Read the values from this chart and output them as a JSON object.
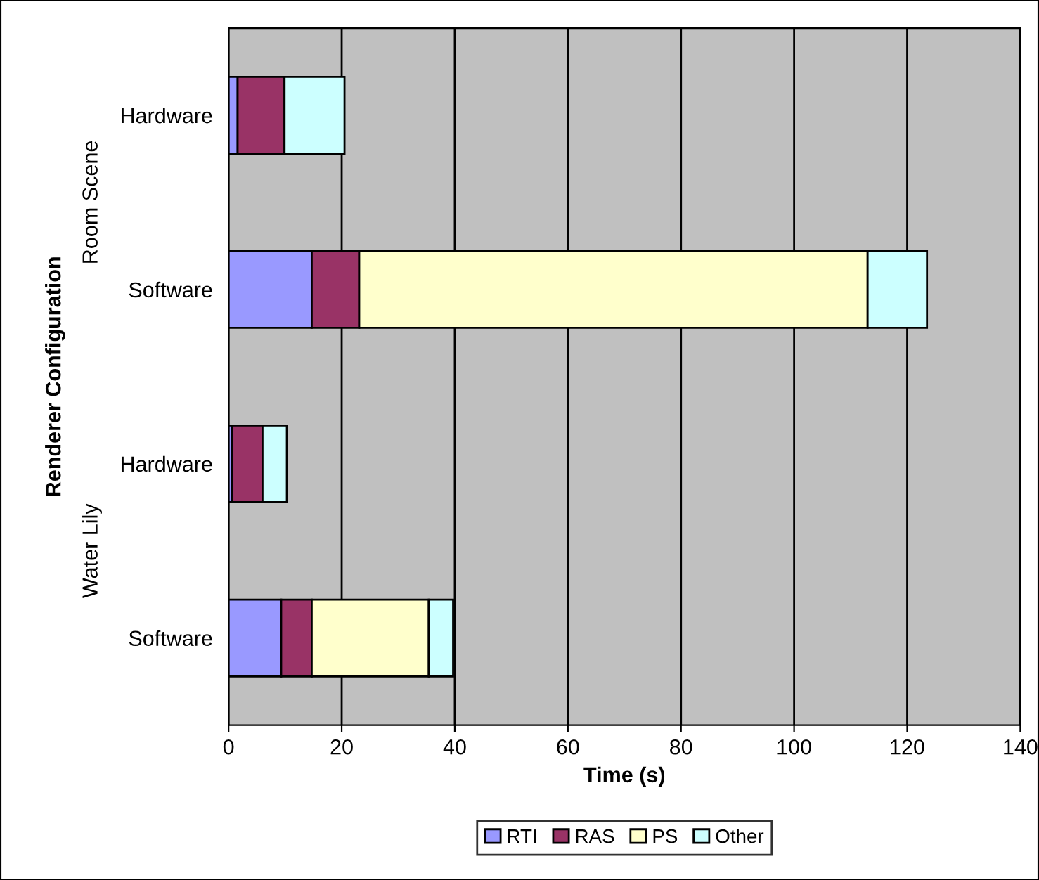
{
  "chart_data": {
    "type": "bar",
    "orientation": "horizontal",
    "stacked": true,
    "xlabel": "Time (s)",
    "ylabel": "Renderer Configuration",
    "categories": [
      "Hardware",
      "Software",
      "Hardware",
      "Software"
    ],
    "annotations": [
      "Room Scene",
      "Water Lily"
    ],
    "series": [
      {
        "name": "RTI",
        "color": "#9999ff",
        "values": [
          1.6,
          14.7,
          0.6,
          9.3
        ]
      },
      {
        "name": "RAS",
        "color": "#993366",
        "values": [
          8.3,
          8.4,
          5.4,
          5.4
        ]
      },
      {
        "name": "PS",
        "color": "#ffffcc",
        "values": [
          0,
          89.9,
          0,
          20.7
        ]
      },
      {
        "name": "Other",
        "color": "#ccffff",
        "values": [
          10.6,
          10.5,
          4.3,
          4.3
        ]
      }
    ],
    "xlim": [
      0,
      140
    ],
    "xticks": [
      0,
      20,
      40,
      60,
      80,
      100,
      120,
      140
    ],
    "grid": "x",
    "legend": "bottom"
  }
}
